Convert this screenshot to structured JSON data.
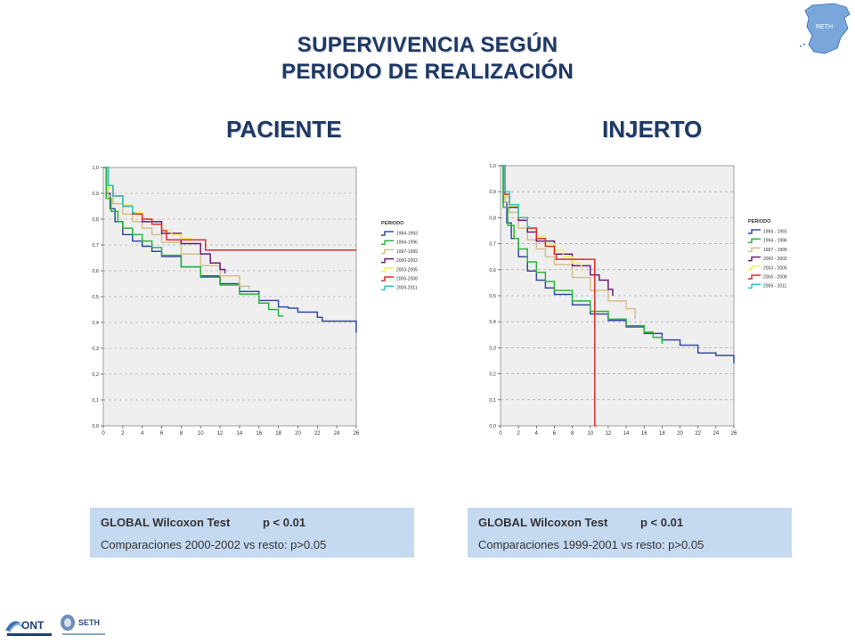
{
  "header": {
    "title_line1": "SUPERVIVENCIA SEGÚN",
    "title_line2": "PERIODO DE REALIZACIÓN",
    "subtitle_left": "PACIENTE",
    "subtitle_right": "INJERTO"
  },
  "logos": {
    "map_text": "RETH",
    "ont_text": "ONT",
    "seth_text": "SETH"
  },
  "stats": {
    "left": {
      "test": "GLOBAL Wilcoxon Test",
      "p": "p < 0.01",
      "comparison": "Comparaciones 2000-2002 vs resto: p>0.05"
    },
    "right": {
      "test": "GLOBAL Wilcoxon Test",
      "p": "p < 0.01",
      "comparison": "Comparaciones 1999-2001 vs resto: p>0.05"
    }
  },
  "colors": {
    "title": "#1f3864",
    "box": "#c5d9f1",
    "plot_bg": "#efefef",
    "s1": "#3749a4",
    "s2": "#2db43c",
    "s3": "#d6c08a",
    "s4": "#6a1f7a",
    "s5": "#f3f05a",
    "s6": "#e02b2b",
    "s7": "#35c5c5"
  },
  "chart_data": [
    {
      "type": "line",
      "step": true,
      "xlim": [
        0,
        26
      ],
      "ylim": [
        0,
        1
      ],
      "x_ticks": [
        "0",
        "2",
        "4",
        "6",
        "8",
        "10",
        "12",
        "14",
        "16",
        "18",
        "20",
        "22",
        "24",
        "26"
      ],
      "y_ticks": [
        "0,0",
        "0,1",
        "0,2",
        "0,3",
        "0,4",
        "0,5",
        "0,6",
        "0,7",
        "0,8",
        "0,9",
        "1,0"
      ],
      "grid": true,
      "legend_title": "PERIODO",
      "legend_position": "right",
      "series": [
        {
          "name": "1984-1993",
          "color": "#3749a4",
          "x": [
            0,
            0.3,
            0.7,
            1.2,
            2,
            3,
            4,
            5,
            6,
            8,
            10,
            12,
            14,
            16,
            18,
            19,
            20,
            22,
            22.5,
            24,
            25.9,
            26
          ],
          "y": [
            1,
            0.9,
            0.84,
            0.79,
            0.74,
            0.715,
            0.695,
            0.675,
            0.655,
            0.615,
            0.58,
            0.55,
            0.52,
            0.485,
            0.46,
            0.455,
            0.44,
            0.42,
            0.405,
            0.405,
            0.405,
            0.36
          ]
        },
        {
          "name": "1994-1996",
          "color": "#2db43c",
          "x": [
            0,
            0.3,
            0.8,
            1.5,
            2,
            3,
            4,
            5,
            6,
            8,
            10,
            12,
            14,
            16,
            17,
            18,
            18.5
          ],
          "y": [
            1,
            0.88,
            0.83,
            0.79,
            0.765,
            0.74,
            0.715,
            0.69,
            0.66,
            0.615,
            0.575,
            0.545,
            0.51,
            0.475,
            0.45,
            0.425,
            0.425
          ]
        },
        {
          "name": "1997-1999",
          "color": "#d6c08a",
          "x": [
            0,
            0.5,
            1,
            2,
            3,
            4,
            5,
            6,
            8,
            10,
            12,
            14,
            15
          ],
          "y": [
            1,
            0.89,
            0.86,
            0.82,
            0.79,
            0.765,
            0.74,
            0.71,
            0.665,
            0.62,
            0.58,
            0.54,
            0.53
          ]
        },
        {
          "name": "2000-2002",
          "color": "#6a1f7a",
          "x": [
            0,
            0.5,
            1,
            2,
            3,
            4,
            6,
            8,
            10,
            11,
            12,
            12.5
          ],
          "y": [
            1,
            0.92,
            0.89,
            0.85,
            0.82,
            0.79,
            0.745,
            0.705,
            0.665,
            0.63,
            0.605,
            0.59
          ]
        },
        {
          "name": "2003-2005",
          "color": "#f3f05a",
          "x": [
            0,
            0.5,
            1,
            2,
            3,
            4,
            5,
            6,
            7,
            8,
            9
          ],
          "y": [
            1,
            0.92,
            0.89,
            0.855,
            0.825,
            0.8,
            0.78,
            0.76,
            0.74,
            0.725,
            0.71
          ]
        },
        {
          "name": "2006-2008",
          "color": "#e02b2b",
          "x": [
            0,
            0.5,
            1,
            2,
            3,
            4,
            5,
            6,
            6.5,
            10.5,
            10.5,
            26
          ],
          "y": [
            1,
            0.93,
            0.89,
            0.85,
            0.82,
            0.8,
            0.78,
            0.755,
            0.72,
            0.72,
            0.68,
            0.68
          ]
        },
        {
          "name": "2009-2011",
          "color": "#35c5c5",
          "x": [
            0,
            0.5,
            1,
            2,
            3,
            3.2
          ],
          "y": [
            1,
            0.93,
            0.89,
            0.85,
            0.825,
            0.82
          ]
        }
      ]
    },
    {
      "type": "line",
      "step": true,
      "xlim": [
        0,
        26
      ],
      "ylim": [
        0,
        1
      ],
      "x_ticks": [
        "0",
        "2",
        "4",
        "6",
        "8",
        "10",
        "12",
        "14",
        "16",
        "18",
        "20",
        "22",
        "24",
        "26"
      ],
      "y_ticks": [
        "0,0",
        "0,1",
        "0,2",
        "0,3",
        "0,4",
        "0,5",
        "0,6",
        "0,7",
        "0,8",
        "0,9",
        "1,0"
      ],
      "grid": true,
      "legend_title": "PERIODO",
      "legend_position": "right",
      "series": [
        {
          "name": "1984 - 1993",
          "color": "#3749a4",
          "x": [
            0,
            0.3,
            0.7,
            1.2,
            2,
            3,
            4,
            5,
            6,
            8,
            10,
            12,
            14,
            16,
            18,
            20,
            22,
            24,
            25.9,
            26
          ],
          "y": [
            1,
            0.86,
            0.78,
            0.72,
            0.65,
            0.595,
            0.56,
            0.53,
            0.505,
            0.465,
            0.43,
            0.405,
            0.38,
            0.355,
            0.33,
            0.31,
            0.28,
            0.27,
            0.27,
            0.24
          ]
        },
        {
          "name": "1994 - 1996",
          "color": "#2db43c",
          "x": [
            0,
            0.3,
            0.8,
            1.5,
            2,
            3,
            4,
            5,
            6,
            8,
            10,
            12,
            14,
            16,
            17,
            18
          ],
          "y": [
            1,
            0.84,
            0.77,
            0.72,
            0.68,
            0.63,
            0.59,
            0.555,
            0.52,
            0.48,
            0.44,
            0.41,
            0.385,
            0.36,
            0.34,
            0.315
          ]
        },
        {
          "name": "1997 - 1999",
          "color": "#d6c08a",
          "x": [
            0,
            0.5,
            1,
            2,
            3,
            4,
            5,
            6,
            8,
            10,
            12,
            14,
            15
          ],
          "y": [
            1,
            0.86,
            0.82,
            0.76,
            0.715,
            0.68,
            0.65,
            0.62,
            0.57,
            0.52,
            0.48,
            0.45,
            0.41
          ]
        },
        {
          "name": "2000 - 2002",
          "color": "#6a1f7a",
          "x": [
            0,
            0.5,
            1,
            2,
            3,
            4,
            6,
            8,
            10,
            11,
            12,
            12.5
          ],
          "y": [
            1,
            0.88,
            0.84,
            0.79,
            0.745,
            0.71,
            0.66,
            0.615,
            0.58,
            0.56,
            0.525,
            0.5
          ]
        },
        {
          "name": "2003 - 2005",
          "color": "#f3f05a",
          "x": [
            0,
            0.5,
            1,
            2,
            3,
            4,
            5,
            6,
            7,
            8,
            9
          ],
          "y": [
            1,
            0.88,
            0.845,
            0.8,
            0.76,
            0.73,
            0.7,
            0.675,
            0.65,
            0.625,
            0.6
          ]
        },
        {
          "name": "2006 - 2008",
          "color": "#e02b2b",
          "x": [
            0,
            0.5,
            1,
            2,
            3,
            4,
            5,
            6,
            6.2,
            10.5,
            10.5,
            10.7
          ],
          "y": [
            1,
            0.89,
            0.85,
            0.8,
            0.76,
            0.72,
            0.69,
            0.66,
            0.64,
            0.64,
            0,
            0
          ]
        },
        {
          "name": "2009 - 2011",
          "color": "#35c5c5",
          "x": [
            0,
            0.5,
            1,
            2,
            3,
            3.2
          ],
          "y": [
            1,
            0.9,
            0.85,
            0.8,
            0.765,
            0.76
          ]
        }
      ]
    }
  ]
}
